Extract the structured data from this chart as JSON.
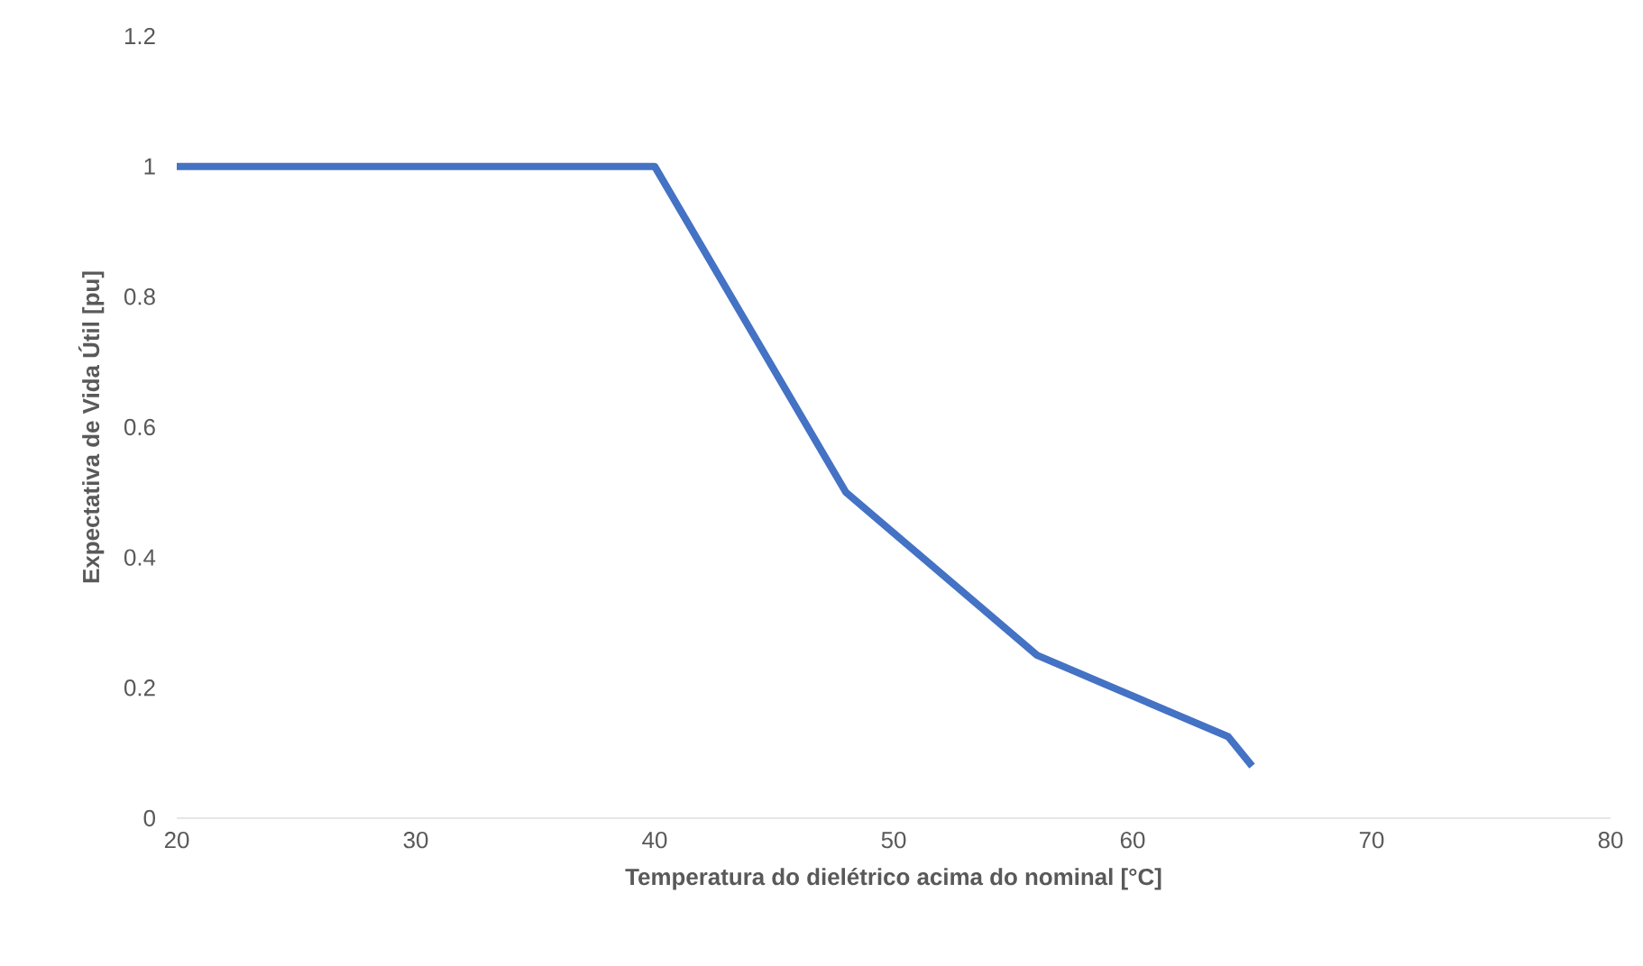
{
  "chart_data": {
    "type": "line",
    "xlabel": "Temperatura do dielétrico acima do nominal [°C]",
    "ylabel": "Expectativa de Vida Útil [pu]",
    "x": [
      20,
      40,
      48,
      56,
      64,
      65
    ],
    "values": [
      1,
      1,
      0.5,
      0.25,
      0.125,
      0.08
    ],
    "color": "#4472c4",
    "line_style": "solid",
    "marker": "none",
    "grid": false,
    "xlim": [
      20,
      80
    ],
    "xticks": [
      20,
      30,
      40,
      50,
      60,
      70,
      80
    ],
    "ylim": [
      0,
      1.2
    ],
    "yticks": [
      0,
      0.2,
      0.4,
      0.6,
      0.8,
      1,
      1.2
    ]
  }
}
